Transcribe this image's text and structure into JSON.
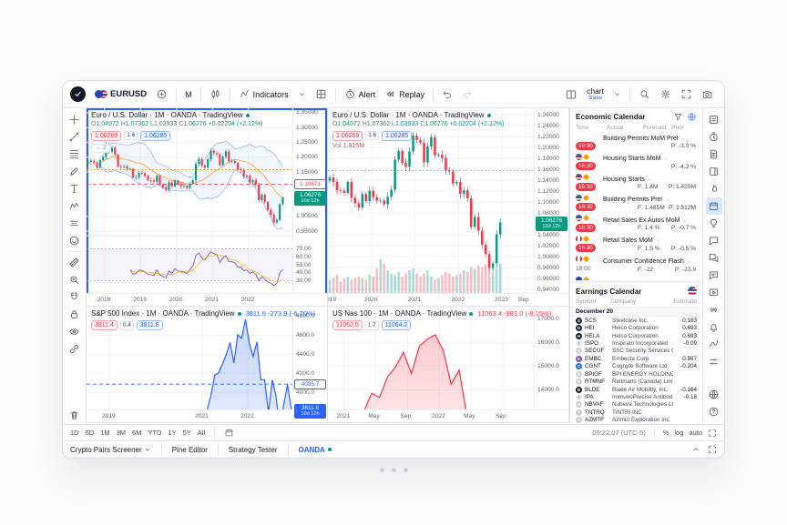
{
  "toolbar": {
    "symbol": "EURUSD",
    "interval": "M",
    "indicators_label": "Indicators",
    "alert_label": "Alert",
    "replay_label": "Replay",
    "layout_name": "chart",
    "save_label": "Save"
  },
  "left_toolbar": {
    "tools_group1": [
      "crosshair",
      "trend-line",
      "fib-retracement",
      "brush",
      "text-tool",
      "xabcd-pattern",
      "long-position",
      "emoji"
    ],
    "tools_group2": [
      "measure",
      "zoom-in",
      "magnet",
      "lock",
      "hide-all",
      "object-sync"
    ],
    "tools_group3": [
      "remove-drawings"
    ]
  },
  "right_rail": {
    "icons": [
      "watchlist",
      "alerts",
      "news",
      "data-window",
      "hotlists",
      "calendar",
      "ideas",
      "chat",
      "community",
      "messages",
      "streams",
      "broadcast",
      "notifications",
      "pine-scripts",
      "price-levels"
    ],
    "active": "calendar",
    "bottom_icons": [
      "globe",
      "help"
    ]
  },
  "charts": [
    {
      "title": "Euro / U.S. Dollar · 1M · OANDA · TradingView",
      "ohlc": [
        {
          "k": "O",
          "v": "1.04072"
        },
        {
          "k": "H",
          "v": "1.07362"
        },
        {
          "k": "L",
          "v": "1.03933"
        },
        {
          "k": "C",
          "v": "1.06276"
        }
      ],
      "change": "+0.02204 (+2.12%)",
      "sell": "1.06269",
      "spread": "1.6",
      "buy": "1.06285",
      "hidden_count": "2"
    },
    {
      "title": "Euro / U.S. Dollar · 1M · OANDA · TradingView",
      "ohlc": [
        {
          "k": "O",
          "v": "1.04072"
        },
        {
          "k": "H",
          "v": "1.07362"
        },
        {
          "k": "L",
          "v": "1.03933"
        },
        {
          "k": "C",
          "v": "1.06276"
        }
      ],
      "change": "+0.02204 (+2.12%)",
      "sell": "1.06269",
      "spread": "1.6",
      "buy": "1.06285",
      "vol_label": "Vol",
      "vol_value": "1.915M"
    },
    {
      "title": "S&P 500 Index · 1M · OANDA · TradingView",
      "value": "3811.6 -273.9 (-6.70%)",
      "value_color": "#2962ff",
      "sell": "3811.4",
      "spread": "0.4",
      "buy": "3811.8"
    },
    {
      "title": "US Nas 100 · 1M · OANDA · TradingView",
      "value": "11063.4 -981.0 (-8.15%)",
      "value_color": "#f23645",
      "sell": "11062.5",
      "spread": "1.7",
      "buy": "11064.2"
    }
  ],
  "chart_data": [
    {
      "id": "eurusd-main",
      "type": "candlestick",
      "interval": "1M",
      "closes": [
        1.184,
        1.188,
        1.181,
        1.165,
        1.19,
        1.2,
        1.241,
        1.219,
        1.232,
        1.208,
        1.169,
        1.168,
        1.169,
        1.16,
        1.16,
        1.131,
        1.132,
        1.147,
        1.145,
        1.137,
        1.122,
        1.121,
        1.117,
        1.137,
        1.108,
        1.098,
        1.09,
        1.115,
        1.102,
        1.121,
        1.109,
        1.103,
        1.103,
        1.096,
        1.11,
        1.123,
        1.178,
        1.194,
        1.172,
        1.165,
        1.193,
        1.222,
        1.214,
        1.209,
        1.173,
        1.202,
        1.219,
        1.186,
        1.187,
        1.181,
        1.158,
        1.156,
        1.134,
        1.137,
        1.115,
        1.122,
        1.107,
        1.055,
        1.073,
        1.048,
        1.022,
        1.005,
        0.98,
        0.988,
        1.041,
        1.063
      ],
      "slots": 69,
      "ylim": [
        0.935,
        1.365
      ],
      "yticks": [
        {
          "v": 1.35,
          "t": "1.35000"
        },
        {
          "v": 1.3,
          "t": "1.30000"
        },
        {
          "v": 1.25,
          "t": "1.25000"
        },
        {
          "v": 1.2,
          "t": "1.20000"
        },
        {
          "v": 1.15,
          "t": "1.15000"
        },
        {
          "v": 1.0,
          "t": "1.00000"
        },
        {
          "v": 0.95,
          "t": "0.95000"
        }
      ],
      "rsi_ticks": [
        {
          "v": 70,
          "t": "70.00"
        },
        {
          "v": 60,
          "t": "60.00"
        },
        {
          "v": 50,
          "t": "50.00"
        },
        {
          "v": 40,
          "t": "40.00"
        },
        {
          "v": 30,
          "t": "30.00"
        }
      ],
      "xticks": [
        {
          "f": 0.087,
          "t": "2018"
        },
        {
          "f": 0.261,
          "t": "2019"
        },
        {
          "f": 0.435,
          "t": "2020"
        },
        {
          "f": 0.609,
          "t": "2021"
        },
        {
          "f": 0.783,
          "t": "2022"
        }
      ],
      "levels": [
        {
          "v": 1.158,
          "color": "#ff9100",
          "dash": "2 2"
        },
        {
          "v": 1.10871,
          "color": "#f23645",
          "dash": "4 3"
        }
      ],
      "badges": [
        {
          "v": 1.10871,
          "t": "1.10871",
          "type": "outline",
          "color": "#f23645"
        },
        {
          "v": 1.06276,
          "t": "1.06276",
          "sub": "10d 12h",
          "type": "solid",
          "color": "#089981"
        }
      ]
    },
    {
      "id": "eurusd-volume",
      "type": "candlestick",
      "interval": "1M",
      "closes": [
        1.145,
        1.137,
        1.122,
        1.121,
        1.117,
        1.137,
        1.108,
        1.098,
        1.09,
        1.115,
        1.102,
        1.121,
        1.109,
        1.103,
        1.103,
        1.096,
        1.11,
        1.123,
        1.178,
        1.194,
        1.172,
        1.165,
        1.193,
        1.222,
        1.214,
        1.209,
        1.173,
        1.202,
        1.219,
        1.186,
        1.187,
        1.181,
        1.158,
        1.156,
        1.134,
        1.137,
        1.115,
        1.122,
        1.107,
        1.055,
        1.073,
        1.048,
        1.022,
        1.005,
        0.98,
        0.988,
        1.041,
        1.063
      ],
      "volumes": [
        0.9,
        1.0,
        1.2,
        0.8,
        1.0,
        1.1,
        0.9,
        1.0,
        1.1,
        1.0,
        0.9,
        1.2,
        1.1,
        1.6,
        2.2,
        1.9,
        1.5,
        1.3,
        1.2,
        1.4,
        1.1,
        1.3,
        1.5,
        1.6,
        1.3,
        1.1,
        1.3,
        1.5,
        1.1,
        0.9,
        1.0,
        1.2,
        1.4,
        1.3,
        1.1,
        1.2,
        1.3,
        1.5,
        1.4,
        1.7,
        1.6,
        1.8,
        1.7,
        1.9,
        2.1,
        1.8,
        1.6,
        1.915
      ],
      "slots": 57,
      "ylim": [
        0.932,
        1.272
      ],
      "yticks": [
        {
          "v": 1.26,
          "t": "1.26000"
        },
        {
          "v": 1.24,
          "t": "1.24000"
        },
        {
          "v": 1.22,
          "t": "1.22000"
        },
        {
          "v": 1.2,
          "t": "1.20000"
        },
        {
          "v": 1.18,
          "t": "1.18000"
        },
        {
          "v": 1.16,
          "t": "1.16000"
        },
        {
          "v": 1.14,
          "t": "1.14000"
        },
        {
          "v": 1.12,
          "t": "1.12000"
        },
        {
          "v": 1.1,
          "t": "1.10000"
        },
        {
          "v": 1.08,
          "t": "1.08000"
        },
        {
          "v": 1.04,
          "t": "1.04000"
        },
        {
          "v": 1.02,
          "t": "1.02000"
        },
        {
          "v": 1.0,
          "t": "1.00000"
        },
        {
          "v": 0.98,
          "t": "0.98000"
        },
        {
          "v": 0.96,
          "t": "0.96000"
        },
        {
          "v": 0.94,
          "t": "0.94000"
        }
      ],
      "xticks": [
        {
          "f": 0.01,
          "t": "2019"
        },
        {
          "f": 0.211,
          "t": "2020"
        },
        {
          "f": 0.421,
          "t": "2021"
        },
        {
          "f": 0.632,
          "t": "2022"
        },
        {
          "f": 0.842,
          "t": "2023"
        },
        {
          "f": 0.955,
          "t": "Sep"
        }
      ],
      "levels": [
        {
          "v": 1.158,
          "color": "#ff9100",
          "dash": "2 2"
        }
      ],
      "badges": [
        {
          "v": 1.06276,
          "t": "1.06276",
          "sub": "10d 12h",
          "type": "solid",
          "color": "#089981"
        }
      ]
    },
    {
      "id": "spx",
      "type": "area",
      "interval": "1M",
      "color": "#2962ff",
      "values": [
        2816,
        2902,
        2914,
        2712,
        2760,
        2507,
        2704,
        2784,
        2834,
        2946,
        2752,
        2942,
        2980,
        2926,
        2977,
        3038,
        3141,
        3231,
        3226,
        2954,
        2585,
        2912,
        3044,
        3100,
        3271,
        3500,
        3363,
        3270,
        3622,
        3756,
        3714,
        3811,
        3973,
        4181,
        4204,
        4297,
        4395,
        4523,
        4308,
        4605,
        4567,
        4766,
        4516,
        4374,
        4530,
        4132,
        4132,
        3785,
        4130,
        3955,
        3586,
        3872,
        4080,
        3812
      ],
      "slots": 54,
      "ylim": [
        2950,
        4900
      ],
      "yticks": [
        {
          "v": 4800,
          "t": "4800.0"
        },
        {
          "v": 4600,
          "t": "4600.0"
        },
        {
          "v": 4400,
          "t": "4400.0"
        },
        {
          "v": 4200,
          "t": "4200.0"
        },
        {
          "v": 4000,
          "t": "4000.0"
        },
        {
          "v": 3600,
          "t": "3600.0"
        },
        {
          "v": 3400,
          "t": "3400.0"
        },
        {
          "v": 3200,
          "t": "3200.0"
        },
        {
          "v": 3000,
          "t": "3000.0"
        }
      ],
      "xticks": [
        {
          "f": 0.11,
          "t": "2019"
        },
        {
          "f": 0.56,
          "t": "2021"
        },
        {
          "f": 0.78,
          "t": "2022"
        }
      ],
      "levels": [
        {
          "v": 4085.7,
          "color": "#2962ff",
          "dash": "4 3"
        }
      ],
      "badges": [
        {
          "v": 4085.7,
          "t": "4085.7",
          "type": "outline",
          "color": "#2962ff"
        },
        {
          "v": 3811.6,
          "t": "3811.6",
          "sub": "10d 12h",
          "type": "solid",
          "color": "#2962ff"
        }
      ]
    },
    {
      "id": "nasdaq",
      "type": "area",
      "interval": "1M",
      "color": "#f23645",
      "values": [
        11052,
        11458,
        13091,
        12909,
        13091,
        13860,
        13687,
        14554,
        14960,
        15582,
        14689,
        15850,
        16135,
        16320,
        15662,
        14238,
        14838,
        12855,
        12642,
        11503,
        12948,
        12272,
        10971,
        11405,
        11983,
        11063
      ],
      "slots": 26,
      "ylim": [
        9700,
        17500
      ],
      "yticks": [
        {
          "v": 17000,
          "t": "17000.0"
        },
        {
          "v": 16000,
          "t": "16000.0"
        },
        {
          "v": 15000,
          "t": "15000.0"
        },
        {
          "v": 14000,
          "t": "14000.0"
        },
        {
          "v": 13000,
          "t": "13000.0"
        },
        {
          "v": 12000,
          "t": "12000.0"
        },
        {
          "v": 10000,
          "t": "10000.0"
        }
      ],
      "xticks": [
        {
          "f": 0.077,
          "t": "2021"
        },
        {
          "f": 0.23,
          "t": "May"
        },
        {
          "f": 0.385,
          "t": "Sep"
        },
        {
          "f": 0.538,
          "t": "2022"
        },
        {
          "f": 0.692,
          "t": "May"
        },
        {
          "f": 0.846,
          "t": "Sep"
        }
      ],
      "levels": [],
      "badges": [
        {
          "v": 11063.4,
          "t": "11063.4",
          "sub": "10d 12h",
          "type": "solid",
          "color": "#f23645"
        }
      ]
    }
  ],
  "economic_calendar": {
    "title": "Economic Calendar",
    "columns": [
      "Time",
      "Actual",
      "Forecast",
      "Prior"
    ],
    "rows": [
      {
        "time": "16:30",
        "hot": true,
        "flag": "us",
        "title": "Building Permits MoM Prel",
        "f": "",
        "p": "P: -3.3 %"
      },
      {
        "time": "16:30",
        "hot": true,
        "flag": "us",
        "title": "Housing Starts MoM",
        "f": "",
        "p": "P: -4.2 %"
      },
      {
        "time": "16:30",
        "hot": true,
        "flag": "us",
        "title": "Housing Starts",
        "f": "F: 1.4M",
        "p": "P: 1.425M"
      },
      {
        "time": "16:30",
        "hot": true,
        "flag": "us",
        "title": "Building Permits Prel",
        "f": "F: 1.485M",
        "p": "P: 1.512M"
      },
      {
        "time": "16:30",
        "hot": true,
        "flag": "ca",
        "title": "Retail Sales Ex Autos MoM",
        "f": "F: 1.4 %",
        "p": "P: -0.7 %"
      },
      {
        "time": "16:30",
        "hot": true,
        "flag": "ca",
        "title": "Retail Sales MoM",
        "f": "F: 1.5 %",
        "p": "P: -0.5 %"
      },
      {
        "time": "18:00",
        "hot": false,
        "flag": "eu",
        "title": "Consumer Confidence Flash",
        "f": "F: -22",
        "p": "P: -23.9"
      }
    ]
  },
  "earnings_calendar": {
    "title": "Earnings Calendar",
    "columns": [
      "Symbol",
      "Company",
      "Estimate"
    ],
    "group": "December 20",
    "rows": [
      {
        "sym": "SCS",
        "name": "Steelcase Inc.",
        "est": "0.183",
        "bg": "#1d212b",
        "fg": "#ffffff",
        "lt": "S"
      },
      {
        "sym": "HEI",
        "name": "Heico Corporation",
        "est": "0.693",
        "bg": "#0b1f3a",
        "fg": "#ffffff",
        "lt": "H"
      },
      {
        "sym": "HEI.A",
        "name": "Heico Corporation",
        "est": "0.693",
        "bg": "#0b1f3a",
        "fg": "#ffffff",
        "lt": "H"
      },
      {
        "sym": "ISPO",
        "name": "Inspirato Incorporated",
        "est": "-0.09",
        "bg": "#e8eaf0",
        "fg": "#555a66",
        "lt": "I"
      },
      {
        "sym": "SECUF",
        "name": "SSC Security Services Corp.",
        "est": "",
        "bg": "#c9cdd6",
        "fg": "#ffffff",
        "lt": "S"
      },
      {
        "sym": "EMBC",
        "name": "Embecta Corp.",
        "est": "0.597",
        "bg": "#7a4fa0",
        "fg": "#ffffff",
        "lt": "E"
      },
      {
        "sym": "CGNT",
        "name": "Cognyte Software Ltd.",
        "est": "-0.204",
        "bg": "#1f6fd6",
        "fg": "#ffffff",
        "lt": "C"
      },
      {
        "sym": "BPIGF",
        "name": "BPI ENERGY HOLDINGS INC",
        "est": "",
        "bg": "#c9cdd6",
        "fg": "#ffffff",
        "lt": "B"
      },
      {
        "sym": "RTMNF",
        "name": "Reitmans (Canada) Limited",
        "est": "",
        "bg": "#c9cdd6",
        "fg": "#ffffff",
        "lt": "R"
      },
      {
        "sym": "BLDE",
        "name": "Blade Air Mobility, Inc.",
        "est": "-0.164",
        "bg": "#14161c",
        "fg": "#ffffff",
        "lt": "B"
      },
      {
        "sym": "IPA",
        "name": "ImmunoPrecise Antibodies Ltd.",
        "est": "-0.18",
        "bg": "#e8eaf0",
        "fg": "#c02b2b",
        "lt": "I"
      },
      {
        "sym": "NBVAF",
        "name": "Nubeva Technologies Ltd.",
        "est": "",
        "bg": "#c9cdd6",
        "fg": "#ffffff",
        "lt": "N"
      },
      {
        "sym": "TNTRQ",
        "name": "TINTRI INC",
        "est": "",
        "bg": "#c9cdd6",
        "fg": "#ffffff",
        "lt": "T"
      },
      {
        "sym": "AZMTF",
        "name": "Azimut Exploration Inc.",
        "est": "",
        "bg": "#c9cdd6",
        "fg": "#ffffff",
        "lt": "A"
      }
    ]
  },
  "timeframe_bar": {
    "items": [
      "1D",
      "5D",
      "1M",
      "3M",
      "6M",
      "YTD",
      "1Y",
      "5Y",
      "All"
    ]
  },
  "status_bar": {
    "clock": "05:22:07 (UTC-5)",
    "pct": "%",
    "log": "log",
    "auto": "auto"
  },
  "screener_bar": {
    "tabs": [
      "Crypto Pairs Screener",
      "Pine Editor",
      "Strategy Tester"
    ],
    "broker": "OANDA"
  }
}
